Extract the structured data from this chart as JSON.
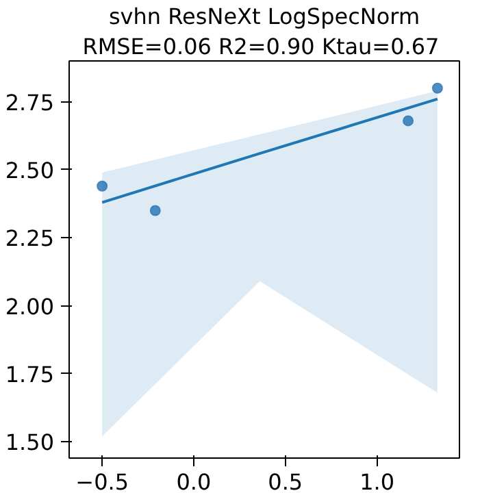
{
  "chart_data": {
    "type": "scatter",
    "title": "svhn ResNeXt LogSpecNorm",
    "subtitle": "RMSE=0.06  R2=0.90 Ktau=0.67",
    "xlim": [
      -0.68,
      1.45
    ],
    "ylim": [
      1.44,
      2.9
    ],
    "xticks": [
      {
        "value": -0.5,
        "label": "−0.5"
      },
      "0.0",
      0.5,
      "1.0"
    ],
    "yticks": [
      {
        "value": 1.5,
        "label": "1.50"
      },
      1.75,
      {
        "value": 2.0,
        "label": "2.00"
      },
      2.25,
      {
        "value": 2.5,
        "label": "2.50"
      },
      2.75
    ],
    "grid": false,
    "series": [
      {
        "marker": "circle",
        "color": "#3b80bb",
        "x": [
          -0.5,
          -0.21,
          1.17,
          1.33
        ],
        "values": [
          2.44,
          2.35,
          2.68,
          2.8
        ]
      },
      {
        "type": "line",
        "color": "#1f77b4",
        "x": [
          -0.5,
          0.36,
          1.33
        ],
        "values": [
          2.38,
          2.56,
          2.76
        ],
        "lower": [
          1.52,
          2.09,
          1.68
        ],
        "upper": [
          2.49,
          2.63,
          2.79
        ]
      }
    ]
  }
}
